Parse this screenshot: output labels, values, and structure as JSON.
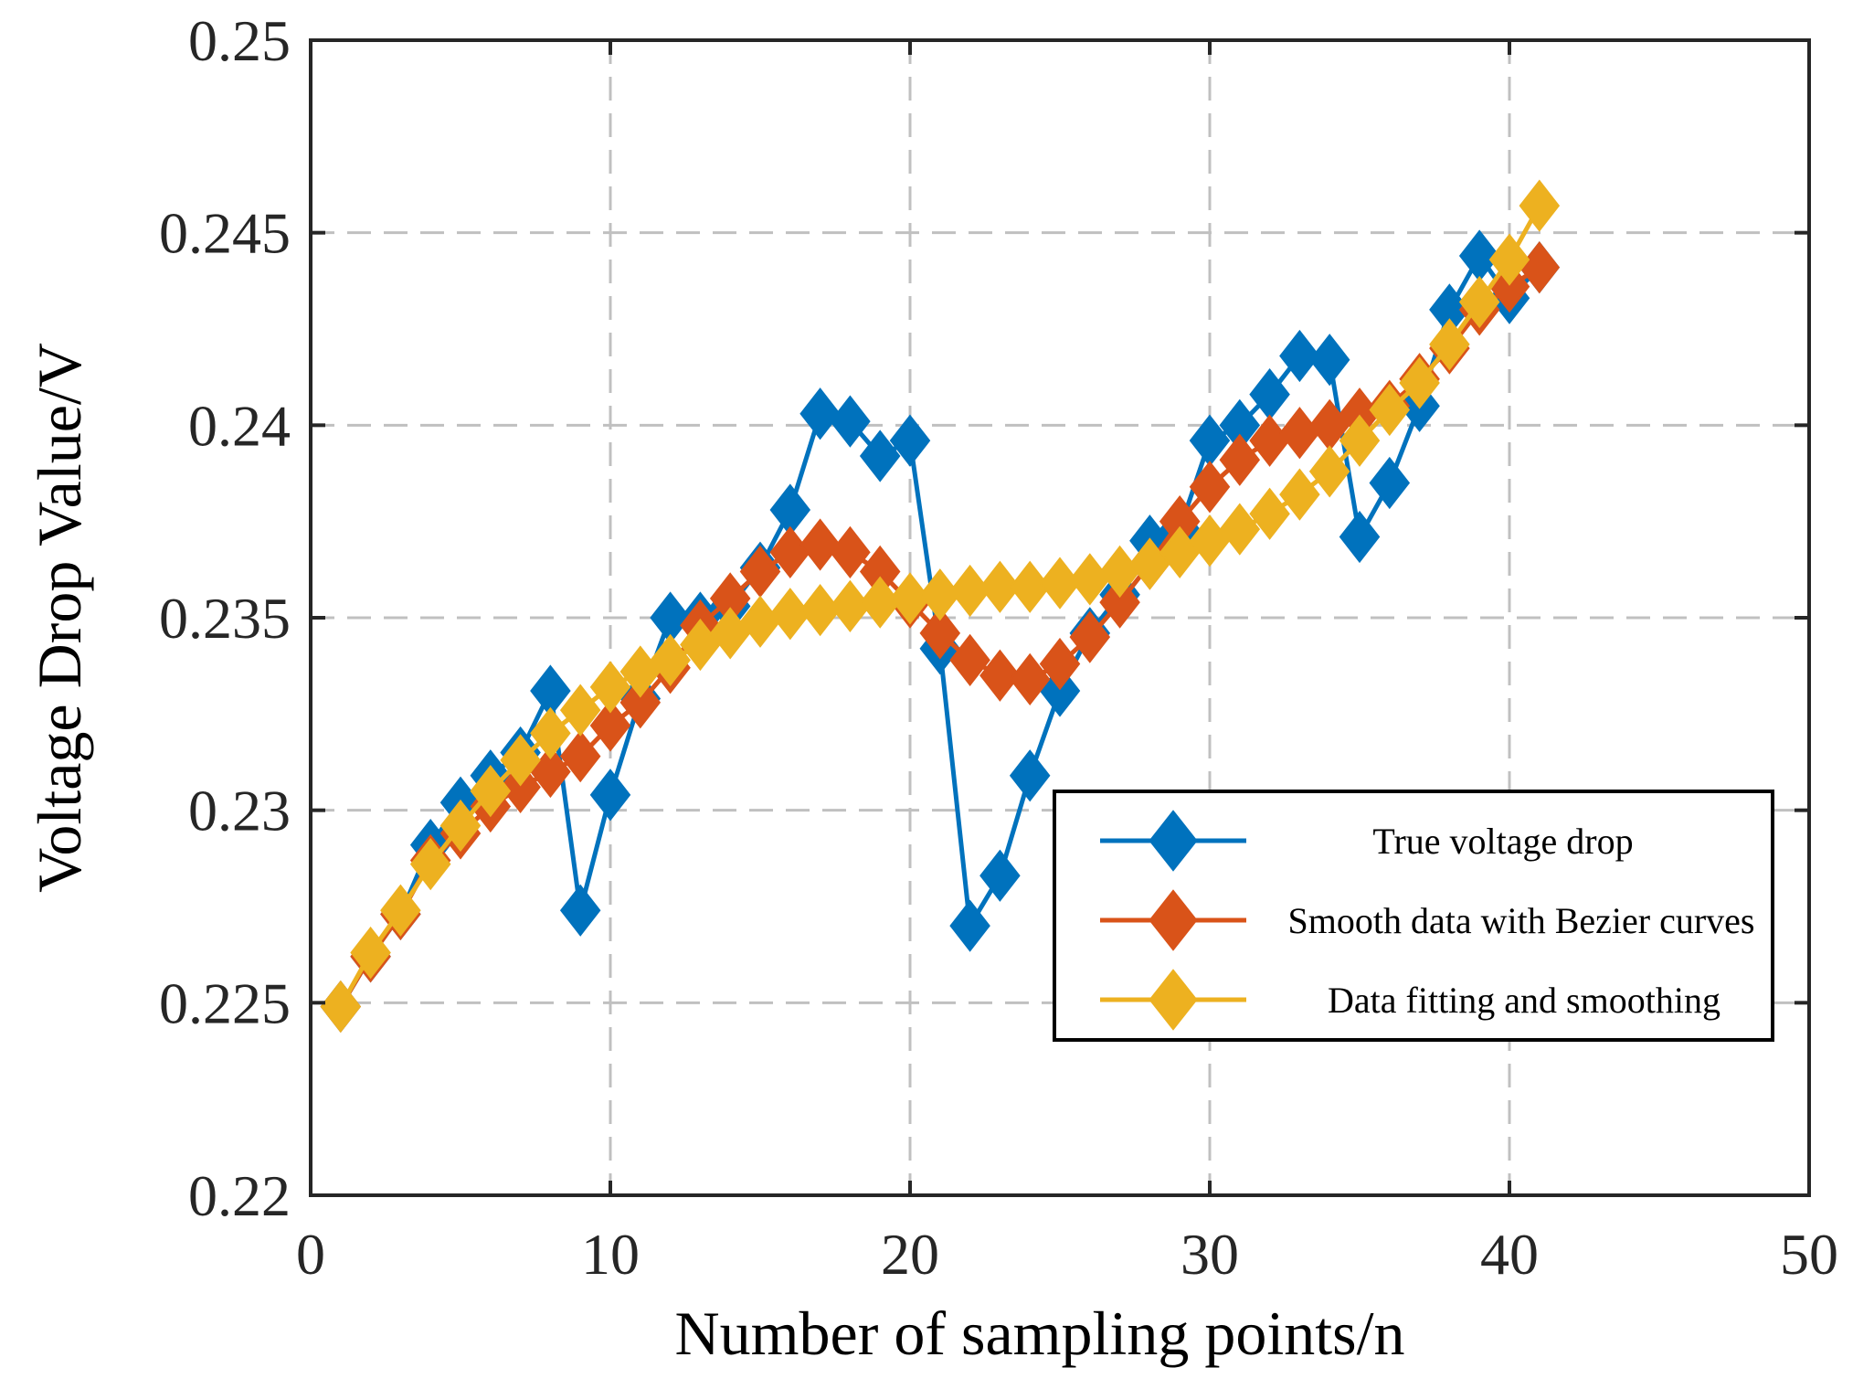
{
  "chart_data": {
    "type": "line",
    "title": "",
    "xlabel": "Number of sampling points/n",
    "ylabel": "Voltage Drop Value/V",
    "xlim": [
      0,
      50
    ],
    "ylim": [
      0.22,
      0.25
    ],
    "xticks": [
      0,
      10,
      20,
      30,
      40,
      50
    ],
    "xtick_labels": [
      "0",
      "10",
      "20",
      "30",
      "40",
      "50"
    ],
    "yticks": [
      0.22,
      0.225,
      0.23,
      0.235,
      0.24,
      0.245,
      0.25
    ],
    "ytick_labels": [
      "0.22",
      "0.225",
      "0.23",
      "0.235",
      "0.24",
      "0.245",
      "0.25"
    ],
    "grid": true,
    "legend_position": "right",
    "marker": "diamond",
    "x": [
      1,
      2,
      3,
      4,
      5,
      6,
      7,
      8,
      9,
      10,
      11,
      12,
      13,
      14,
      15,
      16,
      17,
      18,
      19,
      20,
      21,
      22,
      23,
      24,
      25,
      26,
      27,
      28,
      29,
      30,
      31,
      32,
      33,
      34,
      35,
      36,
      37,
      38,
      39,
      40,
      41
    ],
    "series": [
      {
        "name": "True voltage drop",
        "color": "#0072BD",
        "values": [
          0.2249,
          0.2262,
          0.2273,
          0.2291,
          0.2302,
          0.2309,
          0.2315,
          0.2331,
          0.2274,
          0.2304,
          0.2329,
          0.235,
          0.235,
          0.2353,
          0.2363,
          0.2378,
          0.2403,
          0.2401,
          0.2392,
          0.2396,
          0.2342,
          0.227,
          0.2283,
          0.2309,
          0.2331,
          0.2346,
          0.2356,
          0.237,
          0.2373,
          0.2396,
          0.24,
          0.2408,
          0.2418,
          0.2417,
          0.2371,
          0.2385,
          0.2405,
          0.243,
          0.2444,
          0.2433,
          0.2441
        ]
      },
      {
        "name": "Smooth data with Bezier curves",
        "color": "#D95319",
        "values": [
          0.2249,
          0.2262,
          0.2273,
          0.2287,
          0.2294,
          0.2301,
          0.2306,
          0.231,
          0.2314,
          0.2322,
          0.2328,
          0.2337,
          0.2348,
          0.2355,
          0.2362,
          0.2367,
          0.2369,
          0.2367,
          0.2362,
          0.2354,
          0.2346,
          0.2339,
          0.2335,
          0.2334,
          0.2338,
          0.2345,
          0.2354,
          0.2364,
          0.2375,
          0.2384,
          0.2391,
          0.2396,
          0.2398,
          0.24,
          0.2403,
          0.2405,
          0.2412,
          0.242,
          0.243,
          0.2436,
          0.2441
        ]
      },
      {
        "name": "Data fitting and smoothing",
        "color": "#EDB120",
        "values": [
          0.2249,
          0.2263,
          0.2274,
          0.2286,
          0.2296,
          0.2305,
          0.2313,
          0.232,
          0.2326,
          0.2332,
          0.2336,
          0.2339,
          0.2343,
          0.2346,
          0.2349,
          0.2351,
          0.2352,
          0.2353,
          0.2354,
          0.2355,
          0.2356,
          0.2357,
          0.2358,
          0.2358,
          0.2359,
          0.236,
          0.2362,
          0.2364,
          0.2367,
          0.237,
          0.2373,
          0.2377,
          0.2382,
          0.2388,
          0.2396,
          0.2404,
          0.2411,
          0.2421,
          0.2432,
          0.2443,
          0.2457
        ]
      }
    ]
  }
}
